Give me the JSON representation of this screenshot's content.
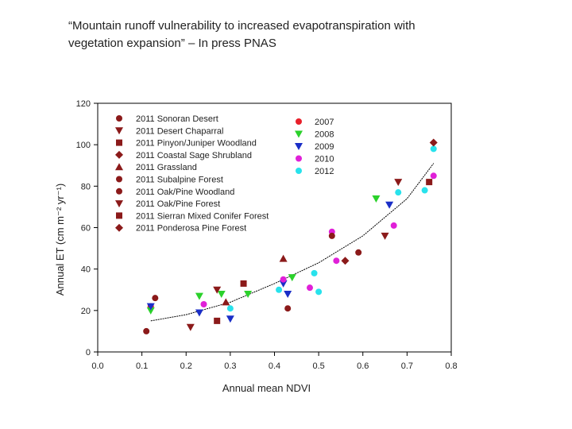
{
  "slide": {
    "title_line1": "“Mountain runoff vulnerability to increased evapotranspiration with",
    "title_line2": "vegetation expansion” – In press PNAS"
  },
  "chart_data": {
    "type": "scatter",
    "xlabel": "Annual mean NDVI",
    "ylabel": "Annual ET (cm m⁻² yr⁻¹)",
    "xlim": [
      0.0,
      0.8
    ],
    "ylim": [
      0,
      120
    ],
    "xticks": [
      "0.0",
      "0.1",
      "0.2",
      "0.3",
      "0.4",
      "0.5",
      "0.6",
      "0.7",
      "0.8"
    ],
    "yticks": [
      "0",
      "20",
      "40",
      "60",
      "80",
      "100",
      "120"
    ],
    "grid": false,
    "legend_sites_title": "",
    "site_series": [
      {
        "name": "2011 Sonoran Desert",
        "shape": "dot",
        "color": "#8b1a1a",
        "points": [
          [
            0.11,
            10
          ],
          [
            0.43,
            21
          ],
          [
            0.53,
            56
          ]
        ]
      },
      {
        "name": "2011 Desert Chaparral",
        "shape": "triangle-down",
        "color": "#8b1a1a",
        "points": [
          [
            0.21,
            12
          ],
          [
            0.65,
            56
          ]
        ]
      },
      {
        "name": "2011 Pinyon/Juniper Woodland",
        "shape": "square",
        "color": "#8b1a1a",
        "points": [
          [
            0.27,
            15
          ],
          [
            0.33,
            33
          ]
        ]
      },
      {
        "name": "2011 Coastal Sage Shrubland",
        "shape": "diamond",
        "color": "#8b1a1a",
        "points": [
          [
            0.56,
            44
          ]
        ]
      },
      {
        "name": "2011 Grassland",
        "shape": "triangle-up",
        "color": "#8b1a1a",
        "points": [
          [
            0.29,
            24
          ],
          [
            0.42,
            45
          ]
        ]
      },
      {
        "name": "2011 Subalpine Forest",
        "shape": "dot",
        "color": "#8b1a1a",
        "points": [
          [
            0.59,
            48
          ]
        ]
      },
      {
        "name": "2011 Oak/Pine Woodland",
        "shape": "dot",
        "color": "#8b1a1a",
        "points": [
          [
            0.13,
            26
          ]
        ]
      },
      {
        "name": "2011 Oak/Pine Forest",
        "shape": "triangle-down",
        "color": "#8b1a1a",
        "points": [
          [
            0.27,
            30
          ],
          [
            0.68,
            82
          ]
        ]
      },
      {
        "name": "2011 Sierran Mixed Conifer Forest",
        "shape": "square",
        "color": "#8b1a1a",
        "points": [
          [
            0.75,
            82
          ]
        ]
      },
      {
        "name": "2011 Ponderosa Pine Forest",
        "shape": "diamond",
        "color": "#8b1a1a",
        "points": [
          [
            0.76,
            101
          ]
        ]
      }
    ],
    "year_series": [
      {
        "name": "2007",
        "shape": "dot",
        "color": "#e8202a",
        "points": [
          [
            0.12,
            22
          ]
        ]
      },
      {
        "name": "2008",
        "shape": "triangle-down",
        "color": "#2bd12b",
        "points": [
          [
            0.12,
            20
          ],
          [
            0.23,
            27
          ],
          [
            0.28,
            28
          ],
          [
            0.34,
            28
          ],
          [
            0.44,
            36
          ],
          [
            0.63,
            74
          ]
        ]
      },
      {
        "name": "2009",
        "shape": "triangle-down",
        "color": "#1a2ec7",
        "points": [
          [
            0.12,
            22
          ],
          [
            0.23,
            19
          ],
          [
            0.3,
            16
          ],
          [
            0.42,
            33
          ],
          [
            0.43,
            28
          ],
          [
            0.66,
            71
          ]
        ]
      },
      {
        "name": "2010",
        "shape": "dot",
        "color": "#e020d8",
        "points": [
          [
            0.24,
            23
          ],
          [
            0.42,
            35
          ],
          [
            0.48,
            31
          ],
          [
            0.53,
            58
          ],
          [
            0.54,
            44
          ],
          [
            0.67,
            61
          ],
          [
            0.76,
            85
          ]
        ]
      },
      {
        "name": "2012",
        "shape": "dot",
        "color": "#28e2ec",
        "points": [
          [
            0.3,
            21
          ],
          [
            0.41,
            30
          ],
          [
            0.49,
            38
          ],
          [
            0.5,
            29
          ],
          [
            0.68,
            77
          ],
          [
            0.74,
            78
          ],
          [
            0.76,
            98
          ]
        ]
      }
    ],
    "fit_curve": {
      "style": "dashed",
      "color": "#000000",
      "x": [
        0.12,
        0.2,
        0.3,
        0.4,
        0.5,
        0.6,
        0.7,
        0.76
      ],
      "y": [
        15,
        18,
        24,
        33,
        43,
        56,
        74,
        91
      ]
    }
  }
}
